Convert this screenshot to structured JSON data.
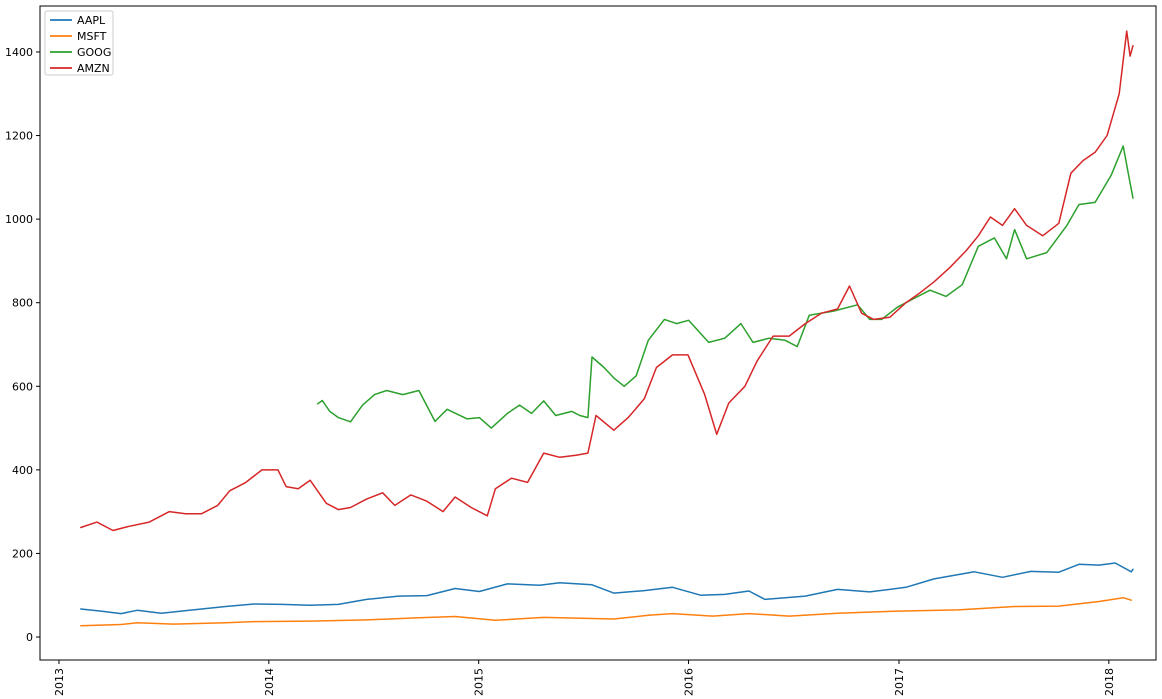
{
  "chart_data": {
    "type": "line",
    "title": "",
    "xlabel": "",
    "ylabel": "",
    "x_axis": "date",
    "xlim": [
      "2012-11-29",
      "2018-03-24"
    ],
    "ylim": [
      -55,
      1510
    ],
    "x_ticks": [
      {
        "date": "2013-01-01",
        "label": "2013"
      },
      {
        "date": "2014-01-01",
        "label": "2014"
      },
      {
        "date": "2015-01-01",
        "label": "2015"
      },
      {
        "date": "2016-01-01",
        "label": "2016"
      },
      {
        "date": "2017-01-01",
        "label": "2017"
      },
      {
        "date": "2018-01-01",
        "label": "2018"
      }
    ],
    "y_ticks": [
      0,
      200,
      400,
      600,
      800,
      1000,
      1200,
      1400
    ],
    "x_tick_rotation": 90,
    "grid": false,
    "legend": "top-left",
    "series": [
      {
        "name": "AAPL",
        "color": "#1f77b4",
        "points": [
          [
            "2013-02-08",
            67
          ],
          [
            "2013-03-15",
            62
          ],
          [
            "2013-04-19",
            56
          ],
          [
            "2013-05-17",
            64
          ],
          [
            "2013-06-28",
            57
          ],
          [
            "2013-08-16",
            64
          ],
          [
            "2013-10-18",
            73
          ],
          [
            "2013-12-06",
            79
          ],
          [
            "2014-01-24",
            78
          ],
          [
            "2014-03-14",
            76
          ],
          [
            "2014-05-02",
            78
          ],
          [
            "2014-06-20",
            90
          ],
          [
            "2014-08-15",
            98
          ],
          [
            "2014-10-03",
            99
          ],
          [
            "2014-11-21",
            116
          ],
          [
            "2015-01-02",
            109
          ],
          [
            "2015-02-20",
            127
          ],
          [
            "2015-04-17",
            124
          ],
          [
            "2015-05-22",
            130
          ],
          [
            "2015-07-17",
            125
          ],
          [
            "2015-08-24",
            105
          ],
          [
            "2015-10-16",
            111
          ],
          [
            "2015-12-04",
            119
          ],
          [
            "2016-01-22",
            100
          ],
          [
            "2016-03-04",
            102
          ],
          [
            "2016-04-15",
            110
          ],
          [
            "2016-05-13",
            90
          ],
          [
            "2016-07-22",
            98
          ],
          [
            "2016-09-16",
            114
          ],
          [
            "2016-11-11",
            108
          ],
          [
            "2017-01-13",
            119
          ],
          [
            "2017-03-03",
            139
          ],
          [
            "2017-05-12",
            156
          ],
          [
            "2017-06-30",
            143
          ],
          [
            "2017-08-18",
            157
          ],
          [
            "2017-10-06",
            155
          ],
          [
            "2017-11-10",
            174
          ],
          [
            "2017-12-15",
            172
          ],
          [
            "2018-01-12",
            177
          ],
          [
            "2018-02-09",
            156
          ],
          [
            "2018-02-12",
            162
          ]
        ]
      },
      {
        "name": "MSFT",
        "color": "#ff7f0e",
        "points": [
          [
            "2013-02-08",
            27
          ],
          [
            "2013-04-19",
            30
          ],
          [
            "2013-05-17",
            34
          ],
          [
            "2013-07-19",
            31
          ],
          [
            "2013-10-18",
            34
          ],
          [
            "2013-12-06",
            37
          ],
          [
            "2014-03-14",
            38
          ],
          [
            "2014-06-20",
            41
          ],
          [
            "2014-09-19",
            46
          ],
          [
            "2014-11-21",
            49
          ],
          [
            "2015-01-30",
            40
          ],
          [
            "2015-04-24",
            47
          ],
          [
            "2015-08-24",
            43
          ],
          [
            "2015-10-23",
            52
          ],
          [
            "2015-12-04",
            56
          ],
          [
            "2016-02-12",
            50
          ],
          [
            "2016-04-15",
            56
          ],
          [
            "2016-06-24",
            50
          ],
          [
            "2016-09-16",
            57
          ],
          [
            "2016-12-30",
            62
          ],
          [
            "2017-04-14",
            65
          ],
          [
            "2017-07-21",
            73
          ],
          [
            "2017-10-06",
            74
          ],
          [
            "2017-12-15",
            85
          ],
          [
            "2018-01-26",
            94
          ],
          [
            "2018-02-09",
            88
          ]
        ]
      },
      {
        "name": "GOOG",
        "color": "#2ca02c",
        "points": [
          [
            "2014-03-27",
            558
          ],
          [
            "2014-04-04",
            566
          ],
          [
            "2014-04-17",
            540
          ],
          [
            "2014-05-02",
            525
          ],
          [
            "2014-05-23",
            515
          ],
          [
            "2014-06-13",
            555
          ],
          [
            "2014-07-04",
            580
          ],
          [
            "2014-07-25",
            590
          ],
          [
            "2014-08-22",
            580
          ],
          [
            "2014-09-19",
            590
          ],
          [
            "2014-10-17",
            516
          ],
          [
            "2014-11-07",
            545
          ],
          [
            "2014-12-12",
            522
          ],
          [
            "2015-01-02",
            525
          ],
          [
            "2015-01-23",
            500
          ],
          [
            "2015-02-20",
            535
          ],
          [
            "2015-03-13",
            555
          ],
          [
            "2015-04-03",
            535
          ],
          [
            "2015-04-24",
            565
          ],
          [
            "2015-05-15",
            530
          ],
          [
            "2015-06-12",
            540
          ],
          [
            "2015-06-26",
            530
          ],
          [
            "2015-07-10",
            525
          ],
          [
            "2015-07-17",
            670
          ],
          [
            "2015-08-07",
            645
          ],
          [
            "2015-08-24",
            620
          ],
          [
            "2015-09-11",
            600
          ],
          [
            "2015-10-02",
            625
          ],
          [
            "2015-10-23",
            710
          ],
          [
            "2015-11-20",
            760
          ],
          [
            "2015-12-11",
            750
          ],
          [
            "2016-01-01",
            758
          ],
          [
            "2016-02-05",
            705
          ],
          [
            "2016-03-04",
            715
          ],
          [
            "2016-04-01",
            750
          ],
          [
            "2016-04-22",
            705
          ],
          [
            "2016-05-20",
            715
          ],
          [
            "2016-06-17",
            710
          ],
          [
            "2016-07-08",
            695
          ],
          [
            "2016-07-29",
            770
          ],
          [
            "2016-09-09",
            780
          ],
          [
            "2016-10-21",
            795
          ],
          [
            "2016-11-11",
            760
          ],
          [
            "2016-12-02",
            760
          ],
          [
            "2016-12-30",
            790
          ],
          [
            "2017-01-27",
            810
          ],
          [
            "2017-02-24",
            830
          ],
          [
            "2017-03-24",
            815
          ],
          [
            "2017-04-21",
            843
          ],
          [
            "2017-05-19",
            935
          ],
          [
            "2017-06-16",
            955
          ],
          [
            "2017-07-07",
            905
          ],
          [
            "2017-07-21",
            975
          ],
          [
            "2017-08-11",
            905
          ],
          [
            "2017-09-15",
            920
          ],
          [
            "2017-10-20",
            985
          ],
          [
            "2017-11-10",
            1035
          ],
          [
            "2017-12-08",
            1040
          ],
          [
            "2018-01-05",
            1105
          ],
          [
            "2018-01-26",
            1175
          ],
          [
            "2018-02-05",
            1100
          ],
          [
            "2018-02-12",
            1050
          ]
        ]
      },
      {
        "name": "AMZN",
        "color": "#d62728",
        "points": [
          [
            "2013-02-08",
            262
          ],
          [
            "2013-03-08",
            275
          ],
          [
            "2013-04-05",
            255
          ],
          [
            "2013-05-03",
            265
          ],
          [
            "2013-06-07",
            275
          ],
          [
            "2013-07-12",
            300
          ],
          [
            "2013-08-09",
            295
          ],
          [
            "2013-09-06",
            295
          ],
          [
            "2013-10-04",
            315
          ],
          [
            "2013-10-25",
            350
          ],
          [
            "2013-11-22",
            370
          ],
          [
            "2013-12-20",
            400
          ],
          [
            "2014-01-17",
            400
          ],
          [
            "2014-01-31",
            360
          ],
          [
            "2014-02-21",
            355
          ],
          [
            "2014-03-14",
            375
          ],
          [
            "2014-04-11",
            320
          ],
          [
            "2014-05-02",
            305
          ],
          [
            "2014-05-23",
            310
          ],
          [
            "2014-06-20",
            330
          ],
          [
            "2014-07-18",
            345
          ],
          [
            "2014-08-08",
            315
          ],
          [
            "2014-09-05",
            340
          ],
          [
            "2014-10-03",
            325
          ],
          [
            "2014-10-31",
            300
          ],
          [
            "2014-11-21",
            335
          ],
          [
            "2014-12-19",
            310
          ],
          [
            "2015-01-16",
            290
          ],
          [
            "2015-01-30",
            355
          ],
          [
            "2015-02-27",
            380
          ],
          [
            "2015-03-27",
            370
          ],
          [
            "2015-04-24",
            440
          ],
          [
            "2015-05-22",
            430
          ],
          [
            "2015-06-19",
            435
          ],
          [
            "2015-07-10",
            440
          ],
          [
            "2015-07-24",
            530
          ],
          [
            "2015-08-24",
            495
          ],
          [
            "2015-09-18",
            525
          ],
          [
            "2015-10-16",
            570
          ],
          [
            "2015-11-06",
            645
          ],
          [
            "2015-12-04",
            675
          ],
          [
            "2015-12-31",
            675
          ],
          [
            "2016-01-29",
            580
          ],
          [
            "2016-02-19",
            485
          ],
          [
            "2016-03-11",
            560
          ],
          [
            "2016-04-08",
            600
          ],
          [
            "2016-04-29",
            660
          ],
          [
            "2016-05-27",
            720
          ],
          [
            "2016-06-24",
            720
          ],
          [
            "2016-07-22",
            750
          ],
          [
            "2016-08-19",
            775
          ],
          [
            "2016-09-16",
            785
          ],
          [
            "2016-10-07",
            840
          ],
          [
            "2016-10-28",
            775
          ],
          [
            "2016-11-18",
            760
          ],
          [
            "2016-12-16",
            765
          ],
          [
            "2017-01-13",
            800
          ],
          [
            "2017-02-03",
            820
          ],
          [
            "2017-03-03",
            850
          ],
          [
            "2017-03-31",
            885
          ],
          [
            "2017-04-28",
            925
          ],
          [
            "2017-05-19",
            960
          ],
          [
            "2017-06-09",
            1005
          ],
          [
            "2017-06-30",
            985
          ],
          [
            "2017-07-21",
            1025
          ],
          [
            "2017-08-11",
            985
          ],
          [
            "2017-09-08",
            960
          ],
          [
            "2017-10-06",
            990
          ],
          [
            "2017-10-27",
            1110
          ],
          [
            "2017-11-17",
            1140
          ],
          [
            "2017-12-08",
            1160
          ],
          [
            "2017-12-29",
            1200
          ],
          [
            "2018-01-19",
            1300
          ],
          [
            "2018-02-01",
            1450
          ],
          [
            "2018-02-07",
            1390
          ],
          [
            "2018-02-12",
            1415
          ]
        ]
      }
    ]
  }
}
